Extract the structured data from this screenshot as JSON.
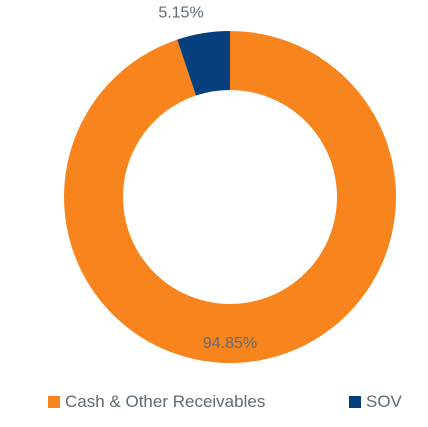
{
  "chart_data": {
    "type": "pie",
    "variant": "donut",
    "title": "",
    "slices": [
      {
        "label": "Cash & Other Receivables",
        "value": 94.85,
        "data_label": "94.85%",
        "color": "#f7841d"
      },
      {
        "label": "SOV",
        "value": 5.15,
        "data_label": "5.15%",
        "color": "#053f7d"
      }
    ],
    "legend_position": "bottom",
    "data_label_color": "#5f6a72"
  }
}
